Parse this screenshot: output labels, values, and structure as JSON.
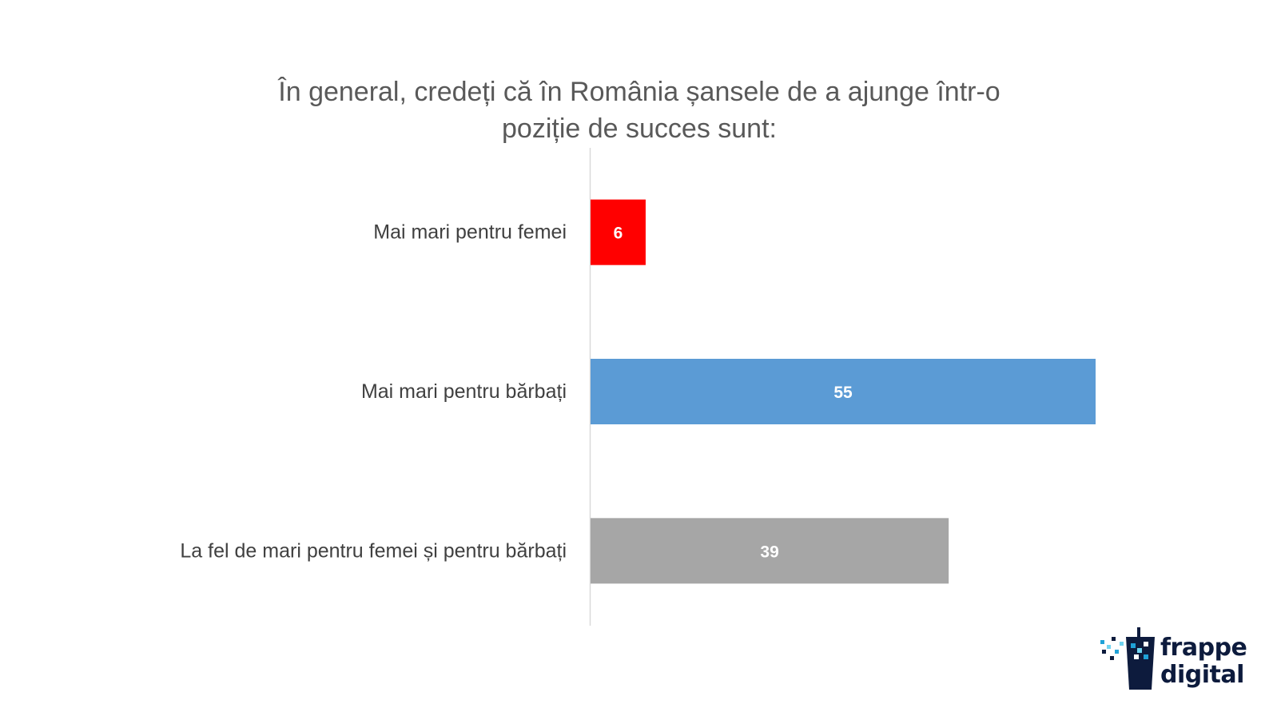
{
  "chart_data": {
    "type": "bar",
    "orientation": "horizontal",
    "title_lines": [
      "În general, credeți că în România șansele de a ajunge într-o",
      "poziție de succes sunt:"
    ],
    "categories": [
      "Mai mari pentru femei",
      "Mai mari pentru bărbați",
      "La fel de mari pentru femei și pentru bărbați"
    ],
    "values": [
      6,
      55,
      39
    ],
    "colors": [
      "#ff0000",
      "#5b9bd5",
      "#a6a6a6"
    ],
    "xlim": [
      0,
      55
    ],
    "grid": false,
    "legend": "none",
    "data_labels": true
  },
  "logo": {
    "line1": "frappe",
    "line2": "digital"
  }
}
